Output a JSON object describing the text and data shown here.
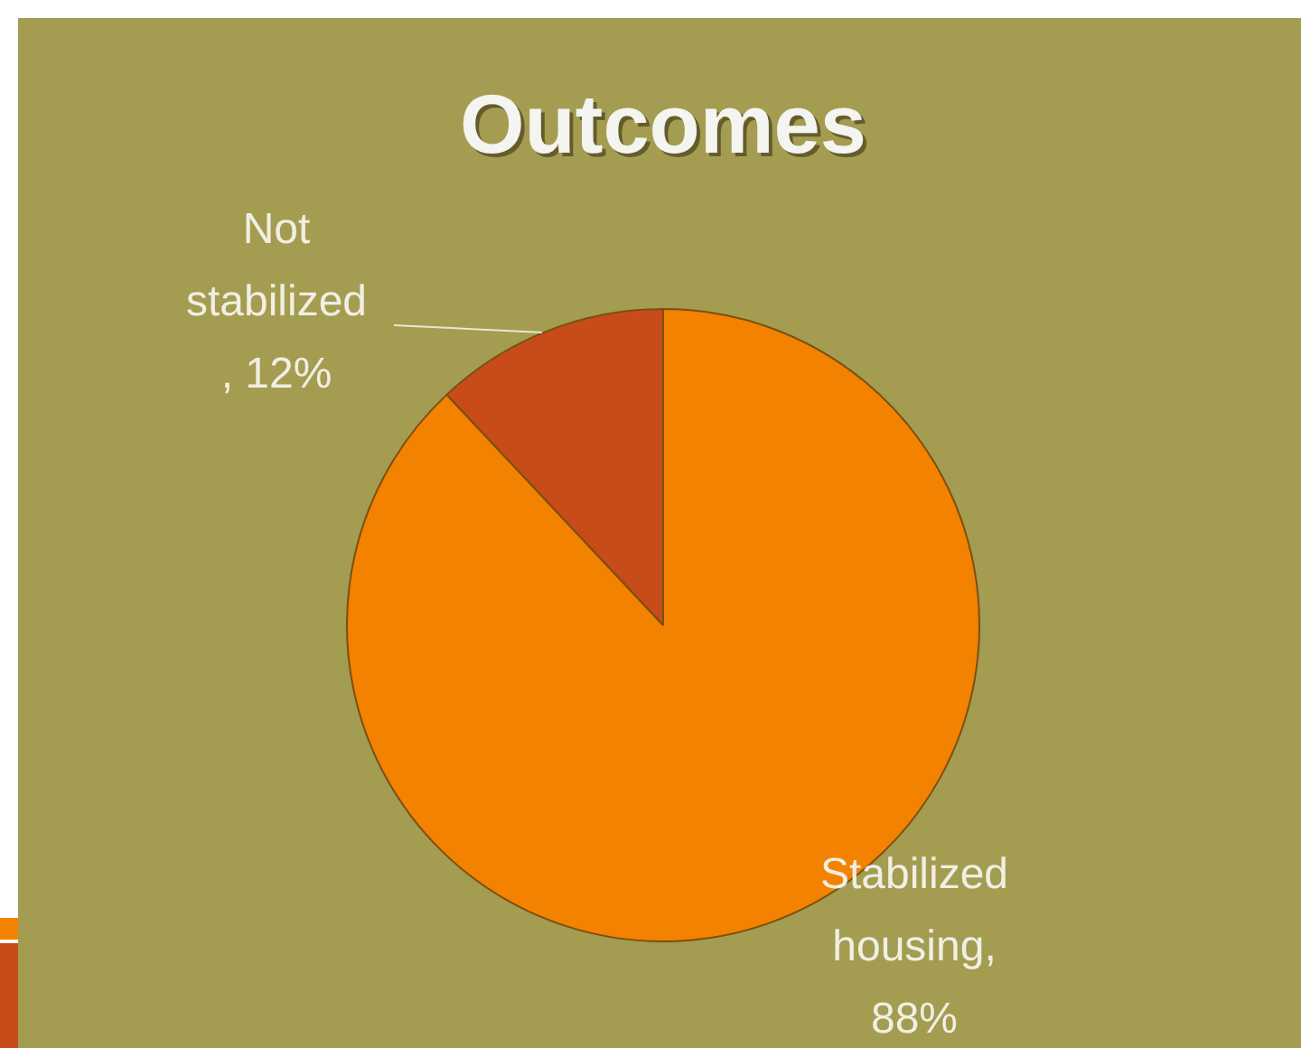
{
  "chart_data": {
    "type": "pie",
    "title": "Outcomes",
    "categories": [
      "Stabilized housing",
      "Not stabilized"
    ],
    "values": [
      88,
      12
    ],
    "colors": [
      "#f38200",
      "#c84b1a"
    ],
    "value_labels": [
      ", 88%",
      ", 12%"
    ]
  }
}
